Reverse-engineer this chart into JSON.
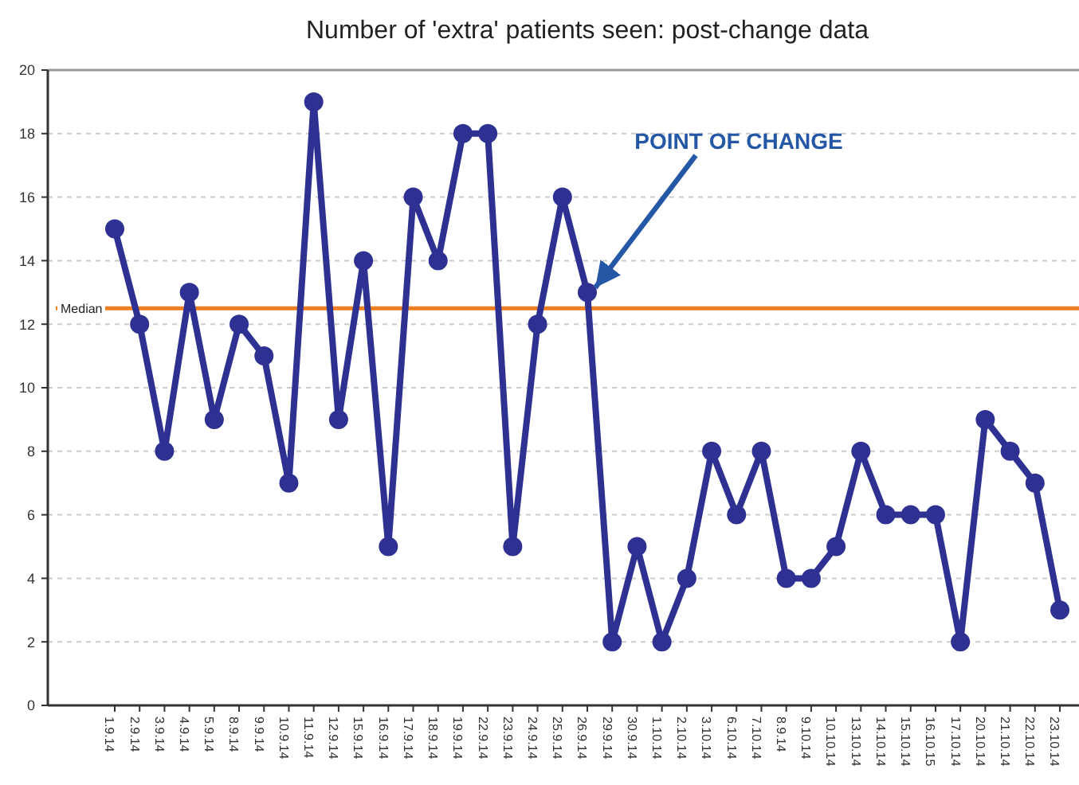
{
  "chart_data": {
    "type": "line",
    "title": "Number of 'extra' patients seen: post-change data",
    "categories": [
      "1.9.14",
      "2.9.14",
      "3.9.14",
      "4.9.14",
      "5.9.14",
      "8.9.14",
      "9.9.14",
      "10.9.14",
      "11.9.14",
      "12.9.14",
      "15.9.14",
      "16.9.14",
      "17.9.14",
      "18.9.14",
      "19.9.14",
      "22.9.14",
      "23.9.14",
      "24.9.14",
      "25.9.14",
      "26.9.14",
      "29.9.14",
      "30.9.14",
      "1.10.14",
      "2.10.14",
      "3.10.14",
      "6.10.14",
      "7.10.14",
      "8.9.14",
      "9.10.14",
      "10.10.14",
      "13.10.14",
      "14.10.14",
      "15.10.14",
      "16.10.15",
      "17.10.14",
      "20.10.14",
      "21.10.14",
      "22.10.14",
      "23.10.14"
    ],
    "series": [
      {
        "color": "#2e3192",
        "values": [
          15,
          12,
          8,
          13,
          9,
          12,
          11,
          7,
          19,
          9,
          14,
          5,
          16,
          14,
          18,
          18,
          5,
          12,
          16,
          13,
          2,
          5,
          2,
          4,
          8,
          6,
          8,
          4,
          4,
          5,
          8,
          6,
          6,
          6,
          2,
          9,
          8,
          7,
          3
        ]
      }
    ],
    "ylim": [
      0,
      20
    ],
    "yticks": [
      0,
      2,
      4,
      6,
      8,
      10,
      12,
      14,
      16,
      18,
      20
    ],
    "grid": "y",
    "marker": "circle",
    "line_style": "solid",
    "ref_lines": [
      {
        "axis": "y",
        "value": 12.5,
        "label": "Median",
        "color": "#f07f22"
      }
    ],
    "annotations": [
      {
        "text": "POINT OF CHANGE",
        "x": "26.9.14",
        "y": 13
      }
    ]
  }
}
